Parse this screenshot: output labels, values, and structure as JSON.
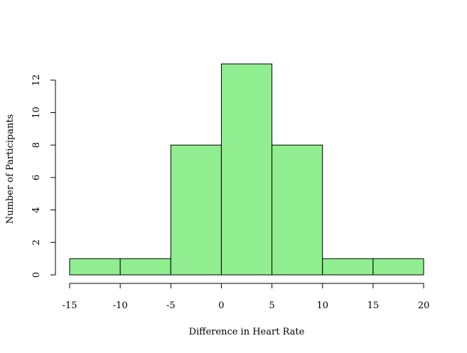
{
  "chart_data": {
    "type": "bar",
    "subtype": "histogram",
    "xlabel": "Difference in Heart Rate",
    "ylabel": "Number of Participants",
    "bins": [
      {
        "x0": -15,
        "x1": -10,
        "count": 1
      },
      {
        "x0": -10,
        "x1": -5,
        "count": 1
      },
      {
        "x0": -5,
        "x1": 0,
        "count": 8
      },
      {
        "x0": 0,
        "x1": 5,
        "count": 13
      },
      {
        "x0": 5,
        "x1": 10,
        "count": 8
      },
      {
        "x0": 10,
        "x1": 15,
        "count": 1
      },
      {
        "x0": 15,
        "x1": 20,
        "count": 1
      }
    ],
    "x_ticks": [
      -15,
      -10,
      -5,
      0,
      5,
      10,
      15,
      20
    ],
    "y_ticks": [
      0,
      2,
      4,
      6,
      8,
      10,
      12
    ],
    "xlim": [
      -15,
      20
    ],
    "ylim": [
      0,
      13
    ],
    "grid": false,
    "bar_color": "#90ee90",
    "border_color": "#000000"
  }
}
